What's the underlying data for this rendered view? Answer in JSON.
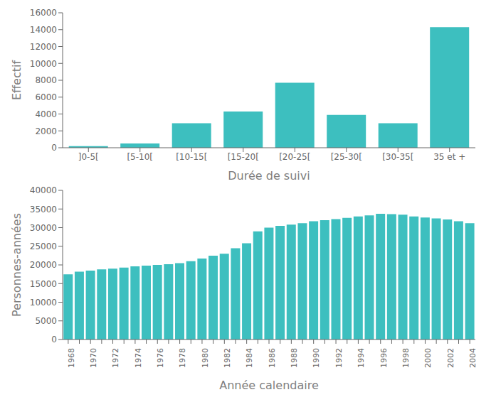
{
  "chart_data": [
    {
      "type": "bar",
      "xlabel": "Durée de suivi",
      "ylabel": "Effectif",
      "categories": [
        "]0-5[",
        "[5-10[",
        "[10-15[",
        "[15-20[",
        "[20-25[",
        "[25-30[",
        "[30-35[",
        "35 et +"
      ],
      "values": [
        200,
        500,
        2900,
        4300,
        7700,
        3900,
        2900,
        14300
      ],
      "color": "#3DBFBF",
      "ylim": [
        0,
        16000
      ],
      "yticks": [
        0,
        2000,
        4000,
        6000,
        8000,
        10000,
        12000,
        14000,
        16000
      ],
      "grid": false
    },
    {
      "type": "bar",
      "xlabel": "Année calendaire",
      "ylabel": "Personnes-années",
      "categories": [
        "1968",
        null,
        "1970",
        null,
        "1972",
        null,
        "1974",
        null,
        "1976",
        null,
        "1978",
        null,
        "1980",
        null,
        "1982",
        null,
        "1984",
        null,
        "1986",
        null,
        "1988",
        null,
        "1990",
        null,
        "1992",
        null,
        "1994",
        null,
        "1996",
        null,
        "1998",
        null,
        "2000",
        null,
        "2002",
        null,
        "2004"
      ],
      "values": [
        17500,
        18200,
        18500,
        18800,
        19000,
        19300,
        19600,
        19800,
        20000,
        20200,
        20500,
        21000,
        21700,
        22500,
        23000,
        24500,
        25800,
        29000,
        30000,
        30500,
        30800,
        31200,
        31700,
        32000,
        32300,
        32600,
        33000,
        33300,
        33700,
        33600,
        33500,
        33000,
        32700,
        32500,
        32200,
        31700,
        31200
      ],
      "color": "#3DBFBF",
      "ylim": [
        0,
        40000
      ],
      "yticks": [
        0,
        5000,
        10000,
        15000,
        20000,
        25000,
        30000,
        35000,
        40000
      ],
      "grid": false
    }
  ]
}
